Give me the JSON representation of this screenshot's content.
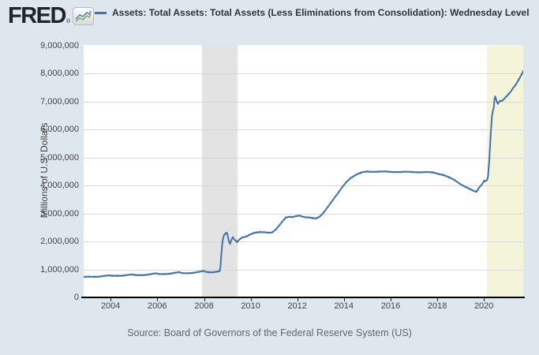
{
  "header": {
    "logo_text": "FRED",
    "registered_mark": "®",
    "logo_icon": "line-chart-icon",
    "legend": {
      "swatch_color": "#4572a7",
      "label": "Assets: Total Assets: Total Assets (Less Eliminations from Consolidation): Wednesday Level"
    }
  },
  "y_axis": {
    "title": "Millions of U.S. Dollars",
    "tick_labels": [
      "9,000,000",
      "8,000,000",
      "7,000,000",
      "6,000,000",
      "5,000,000",
      "4,000,000",
      "3,000,000",
      "2,000,000",
      "1,000,000",
      "0"
    ]
  },
  "x_axis": {
    "tick_years": [
      2004,
      2006,
      2008,
      2010,
      2012,
      2014,
      2016,
      2018,
      2020
    ]
  },
  "footer": {
    "source": "Source: Board of Governors of the Federal Reserve System (US)"
  },
  "chart_data": {
    "type": "line",
    "title": "Assets: Total Assets: Total Assets (Less Eliminations from Consolidation): Wednesday Level",
    "ylabel": "Millions of U.S. Dollars",
    "xlabel": "",
    "x_range": [
      2002.85,
      2021.69
    ],
    "y_range": [
      0,
      9000000
    ],
    "y_tick_step": 1000000,
    "grid": "horizontal",
    "legend_position": "top",
    "noise_amplitude": 20000,
    "recession_bands": [
      {
        "start": 2007.92,
        "end": 2009.45,
        "color": "#e3e3e3"
      },
      {
        "start": 2020.12,
        "end": 2021.69,
        "color": "#f4f4da"
      }
    ],
    "series": [
      {
        "name": "Assets: Total Assets: Total Assets (Less Eliminations from Consolidation): Wednesday Level",
        "color": "#4572a7",
        "points": [
          [
            2002.85,
            719000
          ],
          [
            2003.0,
            732000
          ],
          [
            2003.3,
            742000
          ],
          [
            2003.6,
            755000
          ],
          [
            2003.95,
            778000
          ],
          [
            2004.05,
            768000
          ],
          [
            2004.3,
            778000
          ],
          [
            2004.6,
            788000
          ],
          [
            2004.95,
            812000
          ],
          [
            2005.05,
            795000
          ],
          [
            2005.3,
            803000
          ],
          [
            2005.6,
            815000
          ],
          [
            2005.95,
            852000
          ],
          [
            2006.05,
            833000
          ],
          [
            2006.3,
            843000
          ],
          [
            2006.6,
            853000
          ],
          [
            2006.95,
            895000
          ],
          [
            2007.05,
            865000
          ],
          [
            2007.3,
            873000
          ],
          [
            2007.6,
            883000
          ],
          [
            2007.9,
            920000
          ],
          [
            2007.98,
            950000
          ],
          [
            2008.05,
            918000
          ],
          [
            2008.2,
            905000
          ],
          [
            2008.4,
            908000
          ],
          [
            2008.6,
            925000
          ],
          [
            2008.68,
            940000
          ],
          [
            2008.71,
            1120000
          ],
          [
            2008.74,
            1480000
          ],
          [
            2008.78,
            1880000
          ],
          [
            2008.82,
            2110000
          ],
          [
            2008.87,
            2230000
          ],
          [
            2008.92,
            2270000
          ],
          [
            2008.97,
            2310000
          ],
          [
            2009.0,
            2270000
          ],
          [
            2009.04,
            2110000
          ],
          [
            2009.08,
            1970000
          ],
          [
            2009.12,
            1920000
          ],
          [
            2009.16,
            2010000
          ],
          [
            2009.2,
            2110000
          ],
          [
            2009.24,
            2150000
          ],
          [
            2009.28,
            2090000
          ],
          [
            2009.33,
            2060000
          ],
          [
            2009.38,
            2020000
          ],
          [
            2009.42,
            1975000
          ],
          [
            2009.46,
            2025000
          ],
          [
            2009.55,
            2090000
          ],
          [
            2009.65,
            2135000
          ],
          [
            2009.75,
            2150000
          ],
          [
            2009.85,
            2180000
          ],
          [
            2009.95,
            2232000
          ],
          [
            2010.1,
            2292000
          ],
          [
            2010.25,
            2330000
          ],
          [
            2010.4,
            2338000
          ],
          [
            2010.55,
            2328000
          ],
          [
            2010.7,
            2308000
          ],
          [
            2010.85,
            2298000
          ],
          [
            2010.95,
            2330000
          ],
          [
            2011.1,
            2450000
          ],
          [
            2011.25,
            2605000
          ],
          [
            2011.4,
            2755000
          ],
          [
            2011.5,
            2845000
          ],
          [
            2011.65,
            2870000
          ],
          [
            2011.8,
            2858000
          ],
          [
            2011.95,
            2902000
          ],
          [
            2012.1,
            2928000
          ],
          [
            2012.2,
            2898000
          ],
          [
            2012.35,
            2868000
          ],
          [
            2012.5,
            2858000
          ],
          [
            2012.65,
            2828000
          ],
          [
            2012.8,
            2808000
          ],
          [
            2012.95,
            2878000
          ],
          [
            2013.1,
            3005000
          ],
          [
            2013.3,
            3230000
          ],
          [
            2013.5,
            3448000
          ],
          [
            2013.7,
            3662000
          ],
          [
            2013.9,
            3902000
          ],
          [
            2014.1,
            4128000
          ],
          [
            2014.3,
            4278000
          ],
          [
            2014.5,
            4368000
          ],
          [
            2014.7,
            4438000
          ],
          [
            2014.85,
            4478000
          ],
          [
            2015.0,
            4498000
          ],
          [
            2015.5,
            4488000
          ],
          [
            2016.0,
            4490000
          ],
          [
            2016.5,
            4478000
          ],
          [
            2017.0,
            4480000
          ],
          [
            2017.5,
            4470000
          ],
          [
            2017.8,
            4458000
          ],
          [
            2018.0,
            4428000
          ],
          [
            2018.25,
            4378000
          ],
          [
            2018.5,
            4288000
          ],
          [
            2018.75,
            4178000
          ],
          [
            2019.0,
            4048000
          ],
          [
            2019.2,
            3958000
          ],
          [
            2019.4,
            3868000
          ],
          [
            2019.55,
            3798000
          ],
          [
            2019.68,
            3762000
          ],
          [
            2019.73,
            3832000
          ],
          [
            2019.8,
            3928000
          ],
          [
            2019.9,
            4022000
          ],
          [
            2020.0,
            4152000
          ],
          [
            2020.08,
            4168000
          ],
          [
            2020.14,
            4202000
          ],
          [
            2020.18,
            4362000
          ],
          [
            2020.22,
            4802000
          ],
          [
            2020.26,
            5352000
          ],
          [
            2020.3,
            5952000
          ],
          [
            2020.34,
            6432000
          ],
          [
            2020.38,
            6652000
          ],
          [
            2020.42,
            6752000
          ],
          [
            2020.45,
            7052000
          ],
          [
            2020.48,
            7168000
          ],
          [
            2020.52,
            7078000
          ],
          [
            2020.56,
            6958000
          ],
          [
            2020.6,
            6918000
          ],
          [
            2020.66,
            6988000
          ],
          [
            2020.72,
            7018000
          ],
          [
            2020.78,
            7008000
          ],
          [
            2020.85,
            7078000
          ],
          [
            2020.93,
            7148000
          ],
          [
            2021.0,
            7218000
          ],
          [
            2021.08,
            7288000
          ],
          [
            2021.16,
            7368000
          ],
          [
            2021.24,
            7468000
          ],
          [
            2021.3,
            7528000
          ],
          [
            2021.36,
            7588000
          ],
          [
            2021.42,
            7668000
          ],
          [
            2021.48,
            7758000
          ],
          [
            2021.54,
            7838000
          ],
          [
            2021.6,
            7928000
          ],
          [
            2021.69,
            8078000
          ]
        ]
      }
    ]
  }
}
